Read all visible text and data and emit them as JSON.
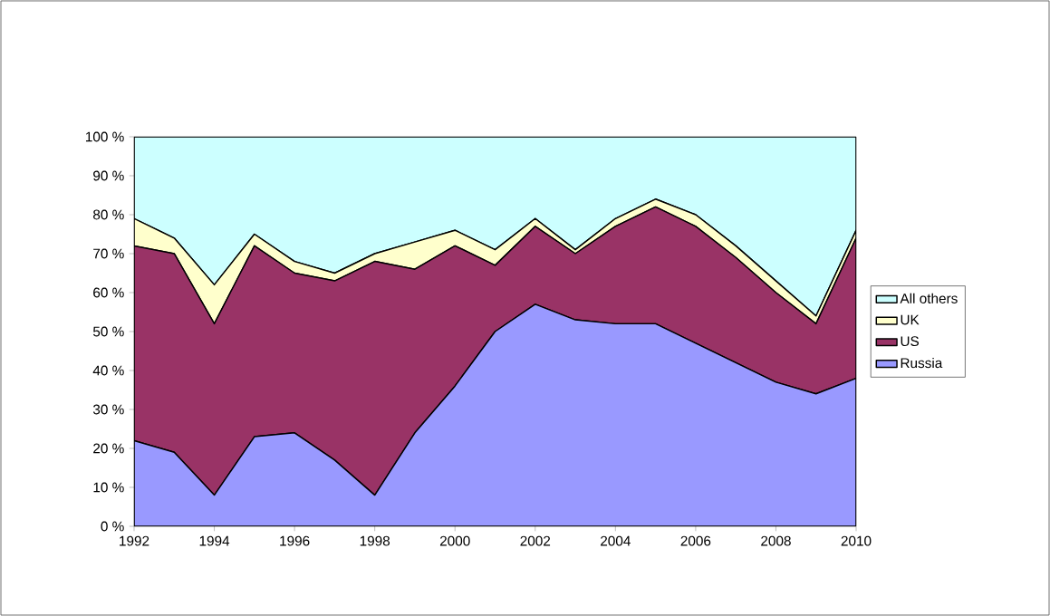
{
  "chart_data": {
    "type": "area",
    "stacked": true,
    "x": [
      1992,
      1993,
      1994,
      1995,
      1996,
      1997,
      1998,
      1999,
      2000,
      2001,
      2002,
      2003,
      2004,
      2005,
      2006,
      2007,
      2008,
      2009,
      2010
    ],
    "series": [
      {
        "name": "Russia",
        "color": "#9999ff",
        "values": [
          22,
          19,
          8,
          23,
          24,
          17,
          8,
          24,
          36,
          50,
          57,
          53,
          52,
          52,
          47,
          42,
          37,
          34,
          38
        ]
      },
      {
        "name": "US",
        "color": "#993366",
        "values": [
          50,
          51,
          44,
          49,
          41,
          46,
          60,
          42,
          36,
          17,
          20,
          17,
          25,
          30,
          30,
          27,
          23,
          18,
          36
        ]
      },
      {
        "name": "UK",
        "color": "#ffffcc",
        "values": [
          7,
          4,
          10,
          3,
          3,
          2,
          2,
          7,
          4,
          4,
          2,
          1,
          2,
          2,
          3,
          3,
          3,
          2,
          2
        ]
      },
      {
        "name": "All others",
        "color": "#ccffff",
        "values": [
          21,
          26,
          38,
          25,
          32,
          35,
          30,
          27,
          24,
          29,
          21,
          29,
          21,
          16,
          20,
          28,
          37,
          46,
          24
        ]
      }
    ],
    "xlim": [
      1992,
      2010
    ],
    "xticks": [
      1992,
      1994,
      1996,
      1998,
      2000,
      2002,
      2004,
      2006,
      2008,
      2010
    ],
    "ylim": [
      0,
      100
    ],
    "yticks": [
      {
        "value": 0,
        "label": "0 %"
      },
      {
        "value": 10,
        "label": "10 %"
      },
      {
        "value": 20,
        "label": "20 %"
      },
      {
        "value": 30,
        "label": "30 %"
      },
      {
        "value": 40,
        "label": "40 %"
      },
      {
        "value": 50,
        "label": "50 %"
      },
      {
        "value": 60,
        "label": "60 %"
      },
      {
        "value": 70,
        "label": "70 %"
      },
      {
        "value": 80,
        "label": "80 %"
      },
      {
        "value": 90,
        "label": "90 %"
      },
      {
        "value": 100,
        "label": "100 %"
      }
    ],
    "grid": false,
    "legend": "right"
  }
}
